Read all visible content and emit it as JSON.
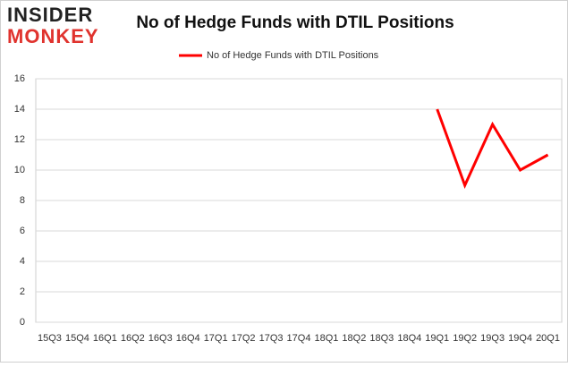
{
  "logo": {
    "line1": "INSIDER",
    "line2": "MONKEY"
  },
  "chart_data": {
    "type": "line",
    "title": "No of Hedge Funds with DTIL Positions",
    "categories": [
      "15Q3",
      "15Q4",
      "16Q1",
      "16Q2",
      "16Q3",
      "16Q4",
      "17Q1",
      "17Q2",
      "17Q3",
      "17Q4",
      "18Q1",
      "18Q2",
      "18Q3",
      "18Q4",
      "19Q1",
      "19Q2",
      "19Q3",
      "19Q4",
      "20Q1"
    ],
    "series": [
      {
        "name": "No of Hedge Funds with DTIL Positions",
        "color": "#ff0000",
        "values": [
          null,
          null,
          null,
          null,
          null,
          null,
          null,
          null,
          null,
          null,
          null,
          null,
          null,
          null,
          14,
          9,
          13,
          10,
          11
        ]
      }
    ],
    "ylim": [
      0,
      16
    ],
    "yticks": [
      0,
      2,
      4,
      6,
      8,
      10,
      12,
      14,
      16
    ],
    "grid": true,
    "legend": "top"
  }
}
